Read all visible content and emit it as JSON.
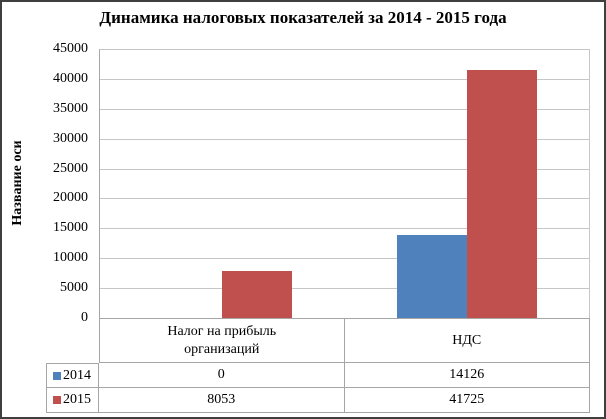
{
  "chart_data": {
    "type": "bar",
    "title": "Динамика налоговых показателей за 2014 - 2015 года",
    "ylabel": "Название оси",
    "xlabel": "",
    "categories": [
      "Налог на прибыль организаций",
      "НДС"
    ],
    "series": [
      {
        "name": "2014",
        "color": "#4F81BD",
        "values": [
          0,
          14126
        ]
      },
      {
        "name": "2015",
        "color": "#C0504D",
        "values": [
          8053,
          41725
        ]
      }
    ],
    "ylim": [
      0,
      45000
    ],
    "ytick_step": 5000,
    "grid": true,
    "legend_position": "data-table-left",
    "data_table_shown": true
  },
  "colors": {
    "series_2014": "#4F81BD",
    "series_2015": "#C0504D",
    "gridline": "#c6c6c6",
    "table_border": "#a6a6a6",
    "frame_border": "#3f3f3f",
    "text": "#000000"
  }
}
